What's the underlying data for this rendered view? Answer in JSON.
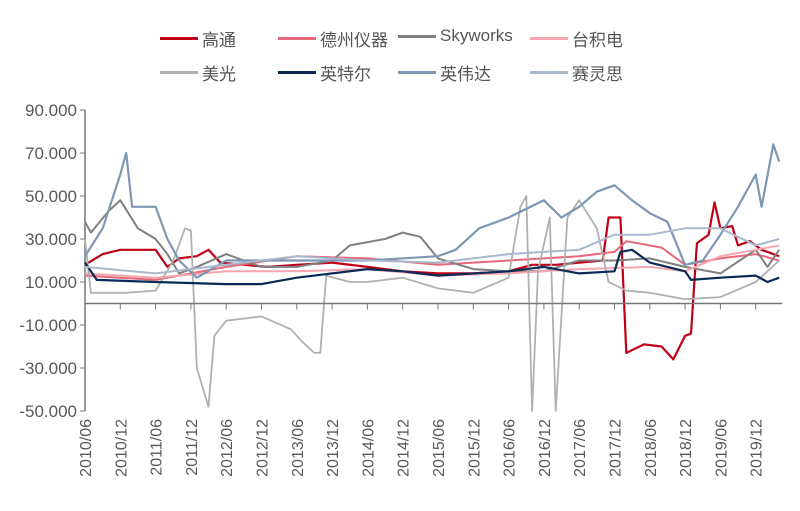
{
  "chart_data": {
    "type": "line",
    "title": "",
    "xlabel": "",
    "ylabel": "",
    "ylim": [
      -50,
      90
    ],
    "yticks": [
      "90.000",
      "70.000",
      "50.000",
      "30.000",
      "10.000",
      "-10.000",
      "-30.000",
      "-50.000"
    ],
    "ytick_values": [
      90,
      70,
      50,
      30,
      10,
      -10,
      -30,
      -50
    ],
    "xlim": [
      "2010-06",
      "2020-04"
    ],
    "xticks": [
      "2010/06",
      "2010/12",
      "2011/06",
      "2011/12",
      "2012/06",
      "2012/12",
      "2013/06",
      "2013/12",
      "2014/06",
      "2014/12",
      "2015/06",
      "2015/12",
      "2016/06",
      "2016/12",
      "2017/06",
      "2017/12",
      "2018/06",
      "2018/12",
      "2019/06",
      "2019/12"
    ],
    "grid": false,
    "legend_position": "top",
    "series": [
      {
        "name": "高通",
        "color": "#C00018",
        "width": 2.2,
        "points": [
          [
            "2010-06",
            18
          ],
          [
            "2010-09",
            23
          ],
          [
            "2010-12",
            25
          ],
          [
            "2011-03",
            25
          ],
          [
            "2011-06",
            25
          ],
          [
            "2011-08",
            17
          ],
          [
            "2011-10",
            21
          ],
          [
            "2012-01",
            22
          ],
          [
            "2012-03",
            25
          ],
          [
            "2012-05",
            19
          ],
          [
            "2012-09",
            18
          ],
          [
            "2013-01",
            17
          ],
          [
            "2013-06",
            18
          ],
          [
            "2013-12",
            19
          ],
          [
            "2014-06",
            17
          ],
          [
            "2014-12",
            15
          ],
          [
            "2015-06",
            14
          ],
          [
            "2015-12",
            14
          ],
          [
            "2016-06",
            15
          ],
          [
            "2016-10",
            18
          ],
          [
            "2017-02",
            18
          ],
          [
            "2017-06",
            19
          ],
          [
            "2017-10",
            20
          ],
          [
            "2017-11",
            40
          ],
          [
            "2018-01",
            40
          ],
          [
            "2018-02",
            -23
          ],
          [
            "2018-05",
            -19
          ],
          [
            "2018-08",
            -20
          ],
          [
            "2018-10",
            -26
          ],
          [
            "2018-12",
            -15
          ],
          [
            "2019-01",
            -14
          ],
          [
            "2019-02",
            28
          ],
          [
            "2019-04",
            32
          ],
          [
            "2019-05",
            47
          ],
          [
            "2019-06",
            35
          ],
          [
            "2019-08",
            36
          ],
          [
            "2019-09",
            27
          ],
          [
            "2019-11",
            29
          ],
          [
            "2020-01",
            25
          ],
          [
            "2020-04",
            22
          ]
        ]
      },
      {
        "name": "德州仪器",
        "color": "#E8677A",
        "width": 2,
        "points": [
          [
            "2010-06",
            13
          ],
          [
            "2011-06",
            11
          ],
          [
            "2012-06",
            17
          ],
          [
            "2013-06",
            22
          ],
          [
            "2014-06",
            21
          ],
          [
            "2015-06",
            18
          ],
          [
            "2016-06",
            20
          ],
          [
            "2017-06",
            22
          ],
          [
            "2017-12",
            24
          ],
          [
            "2018-02",
            29
          ],
          [
            "2018-08",
            26
          ],
          [
            "2018-12",
            18
          ],
          [
            "2019-06",
            21
          ],
          [
            "2019-12",
            23
          ],
          [
            "2020-04",
            20
          ]
        ]
      },
      {
        "name": "Skyworks",
        "color": "#808080",
        "width": 2,
        "points": [
          [
            "2010-06",
            38
          ],
          [
            "2010-07",
            33
          ],
          [
            "2010-10",
            43
          ],
          [
            "2010-12",
            48
          ],
          [
            "2011-03",
            35
          ],
          [
            "2011-06",
            30
          ],
          [
            "2011-08",
            23
          ],
          [
            "2011-10",
            14
          ],
          [
            "2012-01",
            17
          ],
          [
            "2012-06",
            23
          ],
          [
            "2012-12",
            17
          ],
          [
            "2013-06",
            17
          ],
          [
            "2013-12",
            20
          ],
          [
            "2014-03",
            27
          ],
          [
            "2014-09",
            30
          ],
          [
            "2014-12",
            33
          ],
          [
            "2015-03",
            31
          ],
          [
            "2015-06",
            21
          ],
          [
            "2015-12",
            16
          ],
          [
            "2016-06",
            15
          ],
          [
            "2016-12",
            15
          ],
          [
            "2017-06",
            20
          ],
          [
            "2017-12",
            20
          ],
          [
            "2018-06",
            21
          ],
          [
            "2018-12",
            17
          ],
          [
            "2019-06",
            14
          ],
          [
            "2019-12",
            25
          ],
          [
            "2020-02",
            17
          ],
          [
            "2020-04",
            25
          ]
        ]
      },
      {
        "name": "台积电",
        "color": "#F4A7B0",
        "width": 2,
        "points": [
          [
            "2010-06",
            14
          ],
          [
            "2011-06",
            12
          ],
          [
            "2012-06",
            15
          ],
          [
            "2013-06",
            15
          ],
          [
            "2014-06",
            16
          ],
          [
            "2015-06",
            13
          ],
          [
            "2016-06",
            14
          ],
          [
            "2017-06",
            16
          ],
          [
            "2018-06",
            17
          ],
          [
            "2018-12",
            15
          ],
          [
            "2019-06",
            22
          ],
          [
            "2019-12",
            25
          ],
          [
            "2020-04",
            27
          ]
        ]
      },
      {
        "name": "美光",
        "color": "#B0B0B0",
        "width": 1.8,
        "points": [
          [
            "2010-06",
            30
          ],
          [
            "2010-07",
            5
          ],
          [
            "2011-01",
            5
          ],
          [
            "2011-06",
            6
          ],
          [
            "2011-09",
            20
          ],
          [
            "2011-11",
            35
          ],
          [
            "2011-12",
            34
          ],
          [
            "2012-01",
            -30
          ],
          [
            "2012-03",
            -48
          ],
          [
            "2012-04",
            -15
          ],
          [
            "2012-06",
            -8
          ],
          [
            "2012-12",
            -6
          ],
          [
            "2013-05",
            -12
          ],
          [
            "2013-07",
            -18
          ],
          [
            "2013-09",
            -23
          ],
          [
            "2013-10",
            -23
          ],
          [
            "2013-11",
            13
          ],
          [
            "2014-03",
            10
          ],
          [
            "2014-06",
            10
          ],
          [
            "2014-12",
            12
          ],
          [
            "2015-06",
            7
          ],
          [
            "2015-12",
            5
          ],
          [
            "2016-06",
            12
          ],
          [
            "2016-08",
            45
          ],
          [
            "2016-09",
            50
          ],
          [
            "2016-10",
            -50
          ],
          [
            "2016-11",
            15
          ],
          [
            "2017-01",
            40
          ],
          [
            "2017-02",
            -50
          ],
          [
            "2017-04",
            40
          ],
          [
            "2017-06",
            48
          ],
          [
            "2017-09",
            35
          ],
          [
            "2017-11",
            10
          ],
          [
            "2018-02",
            6
          ],
          [
            "2018-06",
            5
          ],
          [
            "2018-12",
            2
          ],
          [
            "2019-06",
            3
          ],
          [
            "2019-12",
            10
          ],
          [
            "2020-04",
            20
          ]
        ]
      },
      {
        "name": "英特尔",
        "color": "#0B2A55",
        "width": 2.2,
        "points": [
          [
            "2010-06",
            19
          ],
          [
            "2010-08",
            11
          ],
          [
            "2011-06",
            10
          ],
          [
            "2012-06",
            9
          ],
          [
            "2012-12",
            9
          ],
          [
            "2013-06",
            12
          ],
          [
            "2014-06",
            16
          ],
          [
            "2014-12",
            15
          ],
          [
            "2015-06",
            13
          ],
          [
            "2016-06",
            15
          ],
          [
            "2016-12",
            17
          ],
          [
            "2017-06",
            14
          ],
          [
            "2017-12",
            15
          ],
          [
            "2018-01",
            24
          ],
          [
            "2018-03",
            25
          ],
          [
            "2018-06",
            19
          ],
          [
            "2018-12",
            15
          ],
          [
            "2019-01",
            11
          ],
          [
            "2019-06",
            12
          ],
          [
            "2019-12",
            13
          ],
          [
            "2020-02",
            10
          ],
          [
            "2020-04",
            12
          ]
        ]
      },
      {
        "name": "英伟达",
        "color": "#7D97B4",
        "width": 2.2,
        "points": [
          [
            "2010-06",
            22
          ],
          [
            "2010-09",
            35
          ],
          [
            "2010-12",
            60
          ],
          [
            "2011-01",
            70
          ],
          [
            "2011-02",
            45
          ],
          [
            "2011-06",
            45
          ],
          [
            "2011-08",
            30
          ],
          [
            "2011-10",
            20
          ],
          [
            "2012-01",
            12
          ],
          [
            "2012-06",
            20
          ],
          [
            "2013-06",
            20
          ],
          [
            "2014-06",
            20
          ],
          [
            "2015-06",
            22
          ],
          [
            "2015-09",
            25
          ],
          [
            "2016-01",
            35
          ],
          [
            "2016-06",
            40
          ],
          [
            "2016-12",
            48
          ],
          [
            "2017-03",
            40
          ],
          [
            "2017-06",
            45
          ],
          [
            "2017-09",
            52
          ],
          [
            "2017-12",
            55
          ],
          [
            "2018-03",
            48
          ],
          [
            "2018-06",
            42
          ],
          [
            "2018-09",
            38
          ],
          [
            "2018-12",
            18
          ],
          [
            "2019-03",
            20
          ],
          [
            "2019-06",
            32
          ],
          [
            "2019-09",
            45
          ],
          [
            "2019-12",
            60
          ],
          [
            "2020-01",
            45
          ],
          [
            "2020-03",
            74
          ],
          [
            "2020-04",
            66
          ]
        ]
      },
      {
        "name": "赛灵思",
        "color": "#A9B8CB",
        "width": 2,
        "points": [
          [
            "2010-06",
            17
          ],
          [
            "2011-06",
            14
          ],
          [
            "2012-06",
            18
          ],
          [
            "2013-06",
            22
          ],
          [
            "2014-06",
            20
          ],
          [
            "2015-06",
            19
          ],
          [
            "2016-06",
            23
          ],
          [
            "2016-12",
            24
          ],
          [
            "2017-06",
            25
          ],
          [
            "2017-12",
            32
          ],
          [
            "2018-06",
            32
          ],
          [
            "2018-12",
            35
          ],
          [
            "2019-06",
            35
          ],
          [
            "2019-12",
            27
          ],
          [
            "2020-04",
            30
          ]
        ]
      }
    ]
  }
}
